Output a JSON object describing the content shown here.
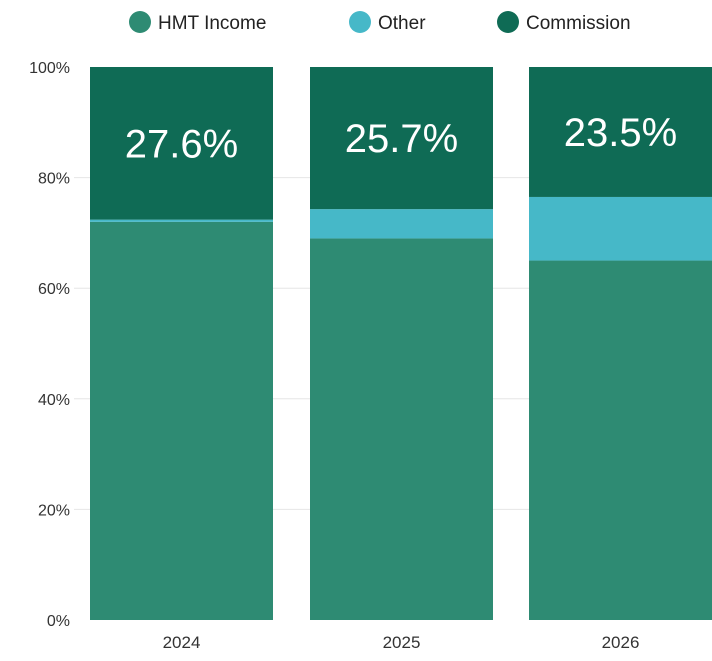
{
  "chart_data": {
    "type": "bar",
    "stacked": true,
    "categories": [
      "2024",
      "2025",
      "2026"
    ],
    "series": [
      {
        "name": "HMT Income",
        "color": "#2e8b73",
        "values": [
          72.0,
          69.0,
          65.0
        ]
      },
      {
        "name": "Other",
        "color": "#46b8c8",
        "values": [
          0.4,
          5.3,
          11.5
        ]
      },
      {
        "name": "Commission",
        "color": "#0f6b55",
        "values": [
          27.6,
          25.7,
          23.5
        ]
      }
    ],
    "data_labels": [
      "27.6%",
      "25.7%",
      "23.5%"
    ],
    "ylim": [
      0,
      100
    ],
    "y_ticks": [
      0,
      20,
      40,
      60,
      80,
      100
    ],
    "y_tick_labels": [
      "0%",
      "20%",
      "40%",
      "60%",
      "80%",
      "100%"
    ],
    "legend_position": "top",
    "grid": false
  }
}
